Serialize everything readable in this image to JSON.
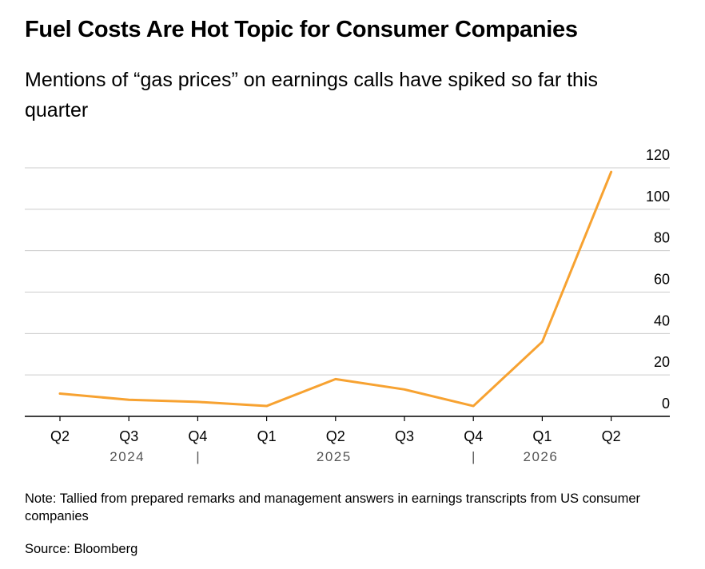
{
  "title": "Fuel Costs Are Hot Topic for Consumer Companies",
  "subtitle": "Mentions of “gas prices” on earnings calls have spiked so far this quarter",
  "note": "Note: Tallied from prepared remarks and management answers in earnings transcripts from US consumer companies",
  "source": "Source: Bloomberg",
  "chart_data": {
    "type": "line",
    "title": "",
    "xlabel": "",
    "ylabel": "",
    "categories": [
      "Q2",
      "Q3",
      "Q4",
      "Q1",
      "Q2",
      "Q3",
      "Q4",
      "Q1",
      "Q2"
    ],
    "year_labels": [
      "2024",
      "2025",
      "2026"
    ],
    "year_separator": "|",
    "series": [
      {
        "values": [
          11,
          8,
          7,
          5,
          18,
          13,
          5,
          36,
          118
        ],
        "color": "#f7a231"
      }
    ],
    "ylim": [
      0,
      120
    ],
    "y_ticks": [
      0,
      20,
      40,
      60,
      80,
      100,
      120
    ],
    "y_axis_position": "right",
    "grid": true,
    "legend": "none",
    "colors": {
      "line": "#f7a231",
      "grid": "#cccccc",
      "axis": "#000000",
      "tick_text": "#000000",
      "year_text": "#555555"
    }
  }
}
